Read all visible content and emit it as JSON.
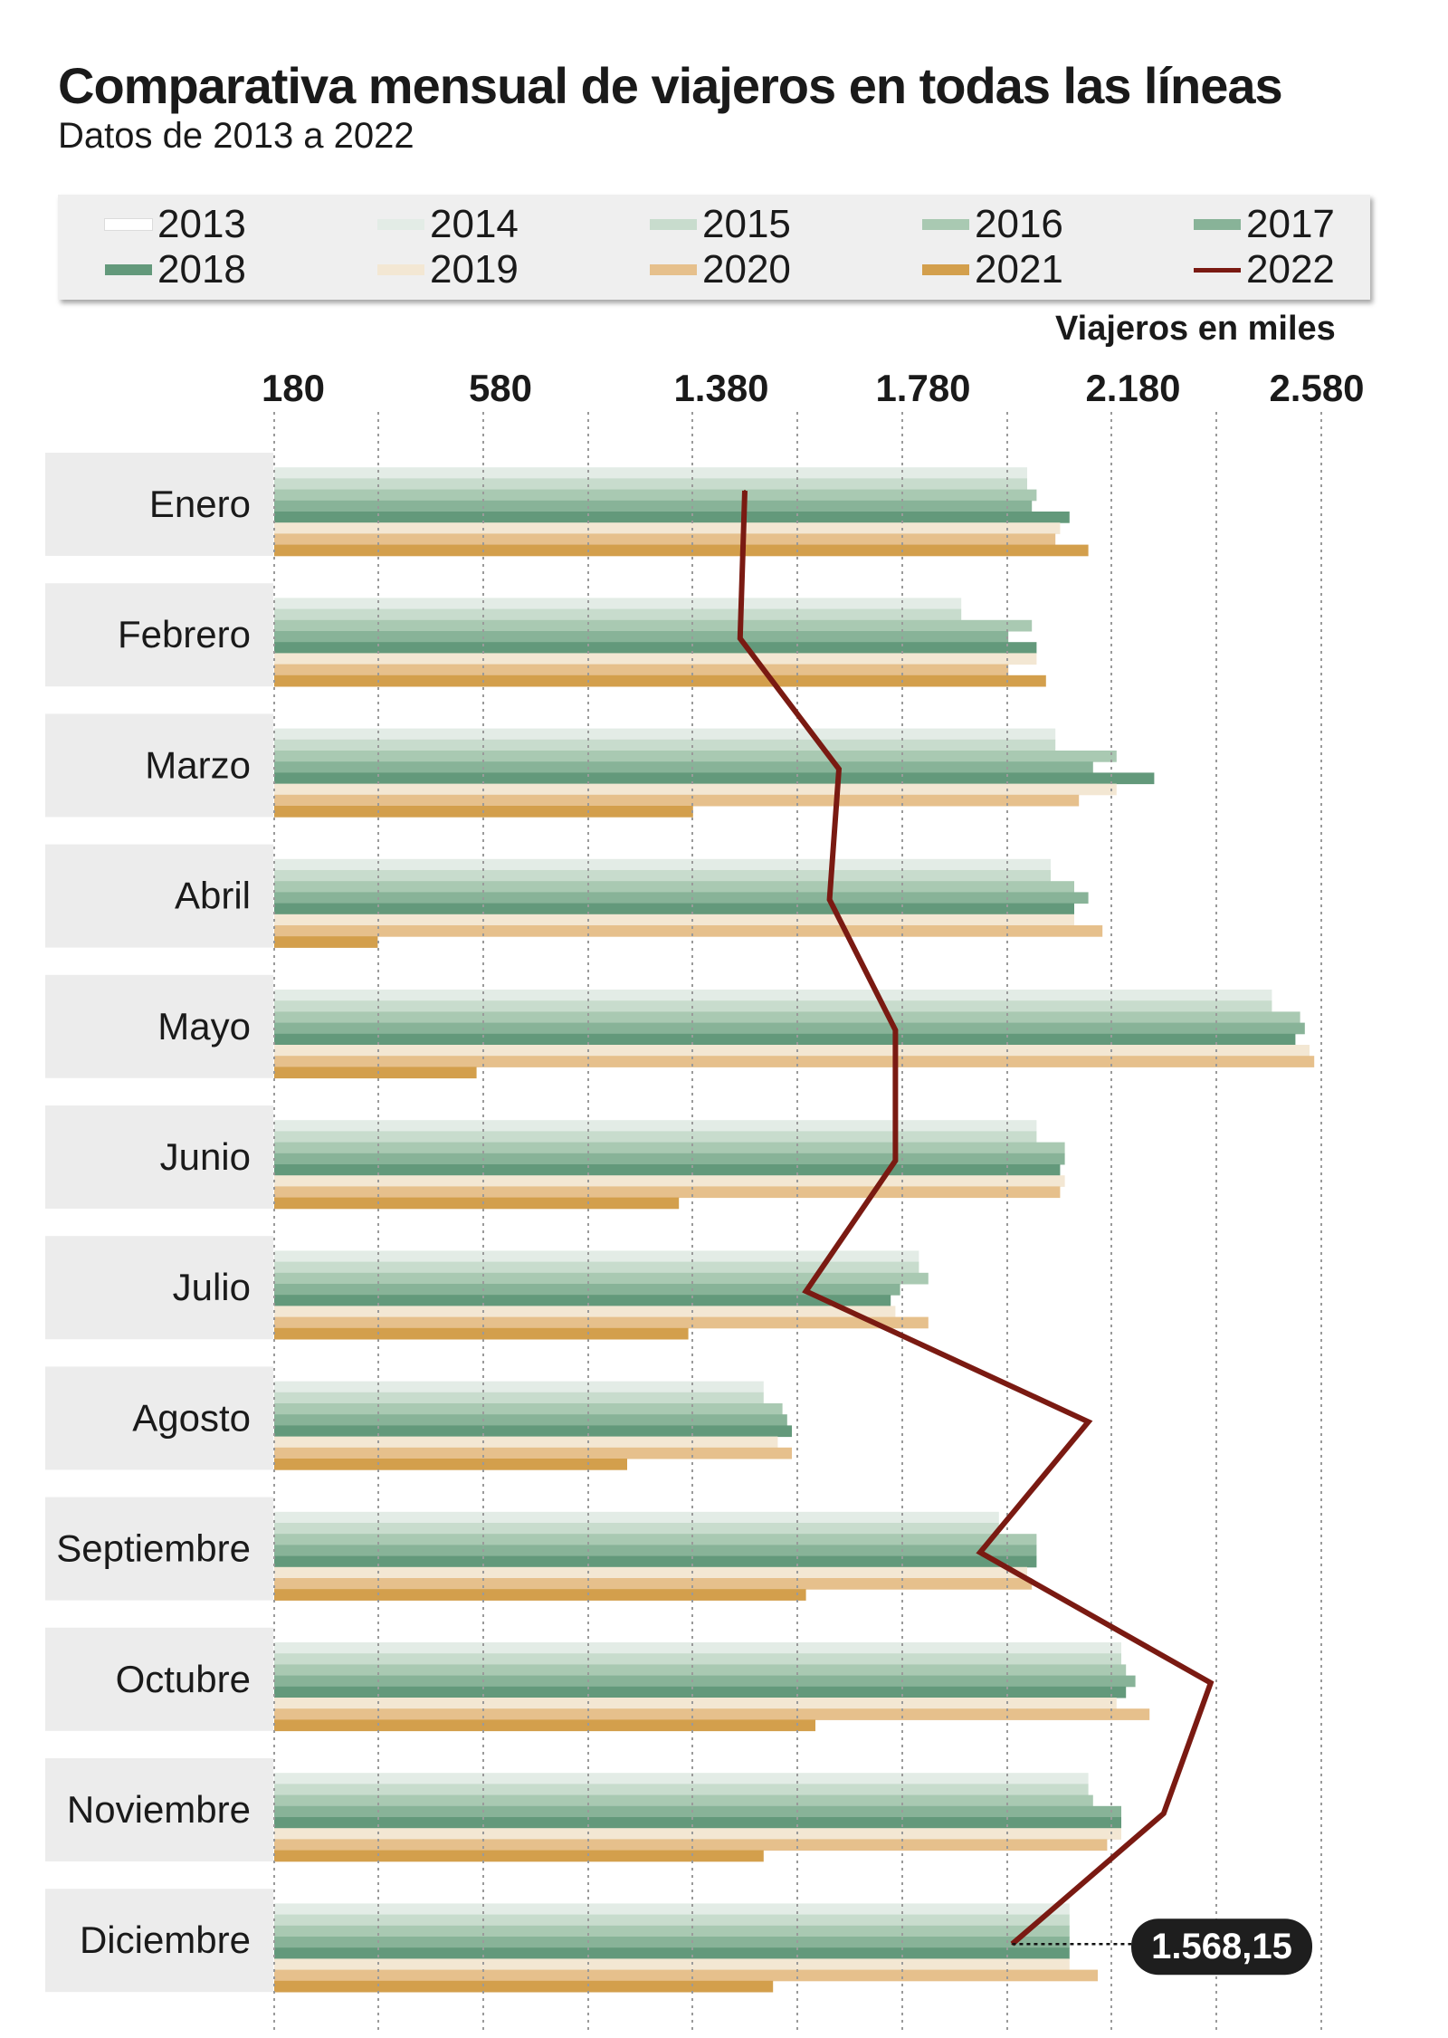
{
  "title": "Comparativa mensual de viajeros en todas las líneas",
  "subtitle": "Datos de 2013 a 2022",
  "legend": [
    {
      "label": "2013",
      "color": "#ffffff",
      "kind": "bar"
    },
    {
      "label": "2014",
      "color": "#e3ece6",
      "kind": "bar"
    },
    {
      "label": "2015",
      "color": "#c8dccd",
      "kind": "bar"
    },
    {
      "label": "2016",
      "color": "#a9c9b2",
      "kind": "bar"
    },
    {
      "label": "2017",
      "color": "#88b398",
      "kind": "bar"
    },
    {
      "label": "2018",
      "color": "#63997b",
      "kind": "bar"
    },
    {
      "label": "2019",
      "color": "#f3e7d3",
      "kind": "bar"
    },
    {
      "label": "2020",
      "color": "#e6c08c",
      "kind": "bar"
    },
    {
      "label": "2021",
      "color": "#d39f4c",
      "kind": "bar"
    },
    {
      "label": "2022",
      "color": "#7a1a12",
      "kind": "line"
    }
  ],
  "units_label": "Viajeros en miles",
  "chart_data": {
    "type": "bar",
    "orientation": "horizontal",
    "units_label": "Viajeros en miles",
    "x_ticks": [
      "180",
      "580",
      "1.380",
      "1.780",
      "2.180",
      "2.580"
    ],
    "categories": [
      "Enero",
      "Febrero",
      "Marzo",
      "Abril",
      "Mayo",
      "Junio",
      "Julio",
      "Agosto",
      "Septiembre",
      "Octubre",
      "Noviembre",
      "Diciembre"
    ],
    "series": [
      {
        "name": "2013",
        "color": "#ffffff",
        "values": [
          1590,
          1460,
          1660,
          1650,
          2120,
          1620,
          1370,
          1040,
          1540,
          1800,
          1730,
          1690
        ]
      },
      {
        "name": "2014",
        "color": "#e3ece6",
        "values": [
          1600,
          1460,
          1660,
          1650,
          2120,
          1620,
          1370,
          1040,
          1540,
          1800,
          1730,
          1690
        ]
      },
      {
        "name": "2015",
        "color": "#c8dccd",
        "values": [
          1600,
          1460,
          1660,
          1650,
          2120,
          1620,
          1370,
          1040,
          1540,
          1800,
          1730,
          1690
        ]
      },
      {
        "name": "2016",
        "color": "#a9c9b2",
        "values": [
          1620,
          1610,
          1790,
          1700,
          2180,
          1680,
          1390,
          1080,
          1620,
          1810,
          1740,
          1690
        ]
      },
      {
        "name": "2017",
        "color": "#88b398",
        "values": [
          1610,
          1560,
          1740,
          1730,
          2190,
          1680,
          1330,
          1090,
          1620,
          1830,
          1800,
          1690
        ]
      },
      {
        "name": "2018",
        "color": "#63997b",
        "values": [
          1690,
          1620,
          1870,
          1700,
          2170,
          1670,
          1310,
          1100,
          1620,
          1810,
          1800,
          1690
        ]
      },
      {
        "name": "2019",
        "color": "#f3e7d3",
        "values": [
          1670,
          1620,
          1790,
          1700,
          2200,
          1680,
          1320,
          1070,
          1600,
          1790,
          1800,
          1690
        ]
      },
      {
        "name": "2020",
        "color": "#e6c08c",
        "values": [
          1660,
          1560,
          1710,
          1760,
          2210,
          1670,
          1390,
          1100,
          1610,
          1860,
          1770,
          1750
        ]
      },
      {
        "name": "2021",
        "color": "#d39f4c",
        "values": [
          1730,
          1640,
          890,
          220,
          430,
          860,
          880,
          750,
          1130,
          1150,
          1040,
          1060
        ]
      },
      {
        "name": "2022",
        "color": "#7a1a12",
        "values": [
          1000,
          990,
          1200,
          1180,
          1320,
          1320,
          1130,
          1730,
          1500,
          1990,
          1890,
          1568.15
        ],
        "kind": "line"
      }
    ],
    "annotation": {
      "category": "Diciembre",
      "series": "2022",
      "label": "1.568,15"
    },
    "grid": true,
    "legend_position": "top"
  }
}
